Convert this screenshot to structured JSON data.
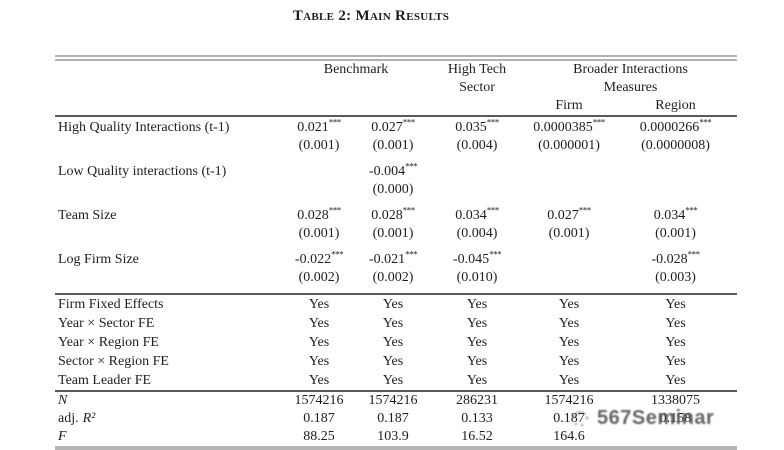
{
  "title": "Table 2: Main Results",
  "watermark": "567Seminar",
  "table": {
    "header": {
      "benchmark": "Benchmark",
      "high_tech": "High Tech",
      "high_tech_2": "Sector",
      "broader": "Broader Interactions",
      "broader_2": "Measures",
      "firm": "Firm",
      "region": "Region"
    },
    "coef_rows": [
      {
        "label": "High Quality Interactions (t-1)",
        "coefs": [
          "0.021***",
          "0.027***",
          "0.035***",
          "0.0000385***",
          "0.0000266***"
        ],
        "ses": [
          "(0.001)",
          "(0.001)",
          "(0.004)",
          "(0.000001)",
          "(0.0000008)"
        ]
      },
      {
        "label": "Low Quality interactions (t-1)",
        "coefs": [
          "",
          "-0.004***",
          "",
          "",
          ""
        ],
        "ses": [
          "",
          "(0.000)",
          "",
          "",
          ""
        ]
      },
      {
        "label": "Team Size",
        "coefs": [
          "0.028***",
          "0.028***",
          "0.034***",
          "0.027***",
          "0.034***"
        ],
        "ses": [
          "(0.001)",
          "(0.001)",
          "(0.004)",
          "(0.001)",
          "(0.001)"
        ]
      },
      {
        "label": "Log Firm Size",
        "coefs": [
          "-0.022***",
          "-0.021***",
          "-0.045***",
          "",
          "-0.028***"
        ],
        "ses": [
          "(0.002)",
          "(0.002)",
          "(0.010)",
          "",
          "(0.003)"
        ]
      }
    ],
    "fe_rows": [
      {
        "label": "Firm Fixed Effects",
        "values": [
          "Yes",
          "Yes",
          "Yes",
          "Yes",
          "Yes"
        ]
      },
      {
        "label": "Year × Sector FE",
        "values": [
          "Yes",
          "Yes",
          "Yes",
          "Yes",
          "Yes"
        ]
      },
      {
        "label": "Year × Region FE",
        "values": [
          "Yes",
          "Yes",
          "Yes",
          "Yes",
          "Yes"
        ]
      },
      {
        "label": "Sector × Region FE",
        "values": [
          "Yes",
          "Yes",
          "Yes",
          "Yes",
          "Yes"
        ]
      },
      {
        "label": "Team Leader FE",
        "values": [
          "Yes",
          "Yes",
          "Yes",
          "Yes",
          "Yes"
        ]
      }
    ],
    "stat_rows": [
      {
        "prefix": "",
        "math": "N",
        "values": [
          "1574216",
          "1574216",
          "286231",
          "1574216",
          "1338075"
        ]
      },
      {
        "prefix": "adj.",
        "math": "R²",
        "values": [
          "0.187",
          "0.187",
          "0.133",
          "0.187",
          "0.158"
        ]
      },
      {
        "prefix": "",
        "math": "F",
        "values": [
          "88.25",
          "103.9",
          "16.52",
          "164.6",
          ""
        ]
      }
    ]
  }
}
